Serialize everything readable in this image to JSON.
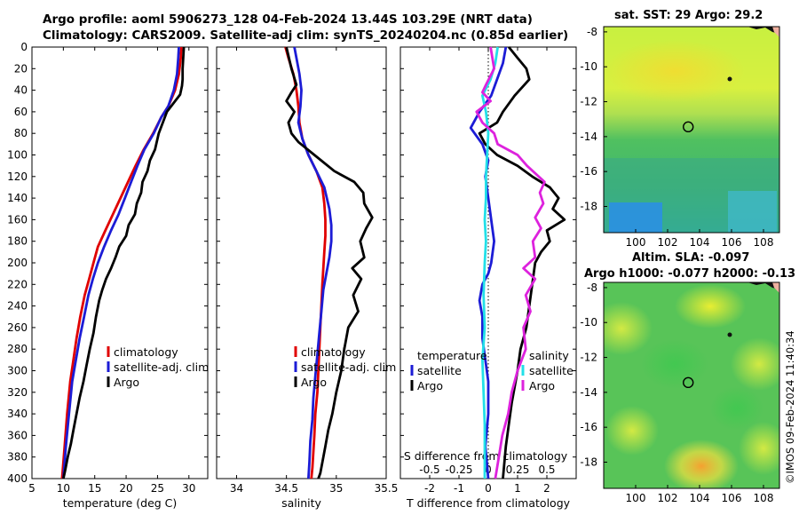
{
  "header": {
    "line1": "Argo profile: aoml 5906273_128 04-Feb-2024 13.44S 103.29E (NRT data)",
    "line2": "Climatology: CARS2009. Satellite-adj clim: synTS_20240204.nc (0.85d earlier)"
  },
  "stamp": "©IMOS 09-Feb-2024 11:40:34",
  "colors": {
    "climatology": "#e00000",
    "satellite": "#1c1cd6",
    "argo": "#000000",
    "sal_diff": "#dd22dd",
    "sat_sal_diff": "#22e0e8"
  },
  "chart_data": [
    {
      "type": "line",
      "title": "",
      "xlabel": "temperature (deg C)",
      "ylabel": "",
      "xlim": [
        5,
        33
      ],
      "ylim": [
        400,
        0
      ],
      "xticks": [
        5,
        10,
        15,
        20,
        25,
        30
      ],
      "yticks": [
        0,
        20,
        40,
        60,
        80,
        100,
        120,
        140,
        160,
        180,
        200,
        220,
        240,
        260,
        280,
        300,
        320,
        340,
        360,
        380,
        400
      ],
      "legend": [
        "climatology",
        "satellite-adj. clim",
        "Argo"
      ],
      "legend_position": "lower-right",
      "series": [
        {
          "name": "climatology",
          "color": "climatology",
          "x": [
            28.8,
            28.7,
            28.4,
            27.8,
            26.7,
            25.6,
            24.3,
            22.8,
            21.5,
            20.3,
            19.1,
            17.9,
            16.7,
            15.5,
            14.8,
            14.1,
            13.4,
            12.7,
            12.1,
            11.6,
            11.1,
            10.6,
            10.2,
            9.8
          ],
          "depth": [
            0,
            10,
            25,
            40,
            55,
            65,
            80,
            95,
            110,
            125,
            140,
            155,
            170,
            185,
            200,
            215,
            230,
            250,
            270,
            290,
            310,
            340,
            370,
            400
          ]
        },
        {
          "name": "satellite-adj. clim",
          "color": "satellite",
          "x": [
            28.4,
            28.3,
            28.1,
            27.6,
            26.7,
            25.6,
            24.4,
            22.9,
            21.8,
            20.8,
            19.8,
            18.8,
            17.6,
            16.5,
            15.5,
            14.7,
            14.0,
            13.3,
            12.6,
            12.0,
            11.4,
            10.9,
            10.4,
            10.0
          ],
          "depth": [
            0,
            10,
            25,
            40,
            55,
            65,
            80,
            95,
            110,
            125,
            140,
            155,
            170,
            185,
            200,
            215,
            230,
            250,
            270,
            290,
            310,
            340,
            370,
            400
          ]
        },
        {
          "name": "Argo",
          "color": "argo",
          "x": [
            29.2,
            29.1,
            29.0,
            29.0,
            28.9,
            28.6,
            26.5,
            25.2,
            24.6,
            23.8,
            23.4,
            22.6,
            22.4,
            21.7,
            21.4,
            20.4,
            20.0,
            18.9,
            18.3,
            17.6,
            16.8,
            16.2,
            15.7,
            15.2,
            14.8,
            14.2,
            13.7,
            13.2,
            12.6,
            12.1,
            11.6,
            11.2,
            10.7,
            10.3,
            10.0
          ],
          "depth": [
            0,
            10,
            20,
            30,
            36,
            44,
            60,
            80,
            95,
            105,
            115,
            125,
            135,
            145,
            155,
            165,
            175,
            185,
            195,
            205,
            215,
            225,
            235,
            250,
            265,
            280,
            295,
            310,
            325,
            340,
            355,
            368,
            380,
            392,
            400
          ]
        }
      ]
    },
    {
      "type": "line",
      "title": "",
      "xlabel": "salinity",
      "ylabel": "",
      "xlim": [
        33.8,
        35.5
      ],
      "ylim": [
        400,
        0
      ],
      "xticks": [
        34,
        34.5,
        35,
        35.5
      ],
      "legend": [
        "climatology",
        "satellite-adj. clim",
        "Argo"
      ],
      "legend_position": "lower-right",
      "series": [
        {
          "name": "climatology",
          "color": "climatology",
          "x": [
            34.49,
            34.52,
            34.57,
            34.6,
            34.62,
            34.63,
            34.66,
            34.72,
            34.8,
            34.86,
            34.88,
            34.89,
            34.89,
            34.88,
            34.87,
            34.86,
            34.85,
            34.84,
            34.83,
            34.82,
            34.81,
            34.79,
            34.78,
            34.77,
            34.76,
            34.75
          ],
          "depth": [
            0,
            10,
            25,
            40,
            55,
            70,
            85,
            100,
            115,
            130,
            145,
            160,
            175,
            190,
            205,
            220,
            240,
            260,
            280,
            300,
            320,
            340,
            360,
            375,
            390,
            400
          ]
        },
        {
          "name": "satellite-adj. clim",
          "color": "satellite",
          "x": [
            34.58,
            34.6,
            34.63,
            34.65,
            34.64,
            34.62,
            34.66,
            34.72,
            34.8,
            34.88,
            34.93,
            34.95,
            34.95,
            34.93,
            34.9,
            34.87,
            34.85,
            34.83,
            34.81,
            34.79,
            34.77,
            34.76,
            34.74,
            34.73,
            34.72
          ],
          "depth": [
            0,
            10,
            25,
            40,
            55,
            70,
            85,
            100,
            115,
            130,
            150,
            165,
            180,
            195,
            210,
            225,
            245,
            265,
            285,
            305,
            325,
            345,
            365,
            385,
            400
          ]
        },
        {
          "name": "Argo",
          "color": "argo",
          "x": [
            34.5,
            34.55,
            34.6,
            34.55,
            34.5,
            34.58,
            34.52,
            34.55,
            34.62,
            34.78,
            34.98,
            35.18,
            35.27,
            35.28,
            35.36,
            35.3,
            35.24,
            35.28,
            35.16,
            35.25,
            35.17,
            35.22,
            35.12,
            35.08,
            35.05,
            35.0,
            34.96,
            34.92,
            34.89,
            34.86,
            34.84,
            34.82
          ],
          "depth": [
            0,
            20,
            35,
            42,
            50,
            60,
            70,
            80,
            88,
            100,
            115,
            125,
            135,
            145,
            158,
            168,
            180,
            195,
            205,
            215,
            230,
            245,
            260,
            280,
            300,
            320,
            340,
            355,
            370,
            385,
            395,
            400
          ]
        }
      ]
    },
    {
      "type": "line",
      "title": "",
      "xlabel": "T difference from climatology",
      "x2label": "S difference from climatology",
      "xlim": [
        -3,
        3
      ],
      "ylim": [
        400,
        0
      ],
      "xticks": [
        -2,
        -1,
        0,
        1,
        2
      ],
      "xtick_labels": [
        "-2",
        "-1",
        "0",
        "1",
        "2"
      ],
      "x2lim": [
        -0.75,
        0.75
      ],
      "x2ticks": [
        -0.5,
        -0.25,
        0,
        0.25,
        0.5
      ],
      "x2tick_labels": [
        "-0.5",
        "-0.25",
        "0",
        "0.25",
        "0.5"
      ],
      "legend_left": {
        "title": "temperature",
        "items": [
          "satellite",
          "Argo"
        ]
      },
      "legend_right": {
        "title": "salinity",
        "items": [
          "satellite",
          "Argo"
        ]
      },
      "series": [
        {
          "name": "T satellite",
          "color": "satellite",
          "axis": "T",
          "x": [
            0.6,
            0.5,
            0.3,
            0.1,
            -0.3,
            -0.6,
            -0.2,
            0.0,
            -0.1,
            0.0,
            0.1,
            0.2,
            0.1,
            0.0,
            -0.2,
            -0.3,
            -0.2,
            -0.2,
            -0.1,
            0.0,
            0.0,
            -0.1,
            0.0
          ],
          "depth": [
            0,
            15,
            30,
            45,
            60,
            75,
            90,
            105,
            120,
            140,
            160,
            180,
            200,
            210,
            220,
            235,
            250,
            270,
            290,
            310,
            340,
            370,
            400
          ]
        },
        {
          "name": "T Argo",
          "color": "argo",
          "axis": "T",
          "x": [
            0.7,
            1.0,
            1.3,
            1.4,
            0.9,
            0.5,
            0.3,
            -0.3,
            -0.1,
            0.3,
            1.0,
            1.5,
            2.1,
            2.4,
            2.2,
            2.6,
            2.0,
            2.1,
            1.8,
            1.6,
            1.5,
            1.4,
            1.3,
            1.1,
            1.0,
            0.8,
            0.6,
            0.5
          ],
          "depth": [
            0,
            10,
            20,
            30,
            45,
            60,
            70,
            80,
            90,
            100,
            110,
            120,
            130,
            140,
            150,
            160,
            170,
            180,
            190,
            200,
            220,
            240,
            260,
            280,
            300,
            330,
            370,
            400
          ]
        },
        {
          "name": "S satellite",
          "color": "sat_sal_diff",
          "axis": "S",
          "x": [
            0.08,
            0.06,
            0.02,
            -0.05,
            -0.02,
            0.0,
            -0.01,
            -0.02,
            -0.02,
            -0.03,
            -0.02,
            -0.03,
            -0.04,
            -0.03,
            -0.05,
            -0.04,
            -0.03,
            -0.03,
            -0.03
          ],
          "depth": [
            0,
            15,
            30,
            45,
            60,
            80,
            100,
            120,
            140,
            160,
            180,
            200,
            230,
            260,
            290,
            320,
            350,
            380,
            400
          ]
        },
        {
          "name": "S Argo",
          "color": "sal_diff",
          "axis": "S",
          "x": [
            0.02,
            0.05,
            -0.02,
            -0.05,
            0.02,
            -0.1,
            -0.05,
            0.05,
            0.08,
            0.25,
            0.33,
            0.48,
            0.44,
            0.47,
            0.4,
            0.45,
            0.38,
            0.4,
            0.3,
            0.4,
            0.32,
            0.36,
            0.3,
            0.32,
            0.25,
            0.2,
            0.17,
            0.12,
            0.09,
            0.06
          ],
          "depth": [
            0,
            20,
            35,
            42,
            50,
            60,
            70,
            80,
            90,
            100,
            110,
            125,
            135,
            145,
            158,
            168,
            180,
            195,
            205,
            215,
            230,
            245,
            260,
            280,
            300,
            320,
            340,
            360,
            380,
            400
          ]
        }
      ]
    }
  ],
  "maps": [
    {
      "title": "sat. SST: 29 Argo: 29.2",
      "xticks": [
        "100",
        "102",
        "104",
        "106",
        "108"
      ],
      "yticks": [
        "-8",
        "-10",
        "-12",
        "-14",
        "-16",
        "-18"
      ],
      "xlim": [
        98,
        109
      ],
      "ylim": [
        -19.5,
        -7.7
      ],
      "argo_lon": 103.29,
      "argo_lat": -13.44
    },
    {
      "title1": "Altim. SLA: -0.097",
      "title2": "Argo h1000: -0.077 h2000: -0.13",
      "xticks": [
        "100",
        "102",
        "104",
        "106",
        "108"
      ],
      "yticks": [
        "-8",
        "-10",
        "-12",
        "-14",
        "-16",
        "-18"
      ],
      "xlim": [
        98,
        109
      ],
      "ylim": [
        -19.5,
        -7.7
      ],
      "argo_lon": 103.29,
      "argo_lat": -13.44
    }
  ]
}
